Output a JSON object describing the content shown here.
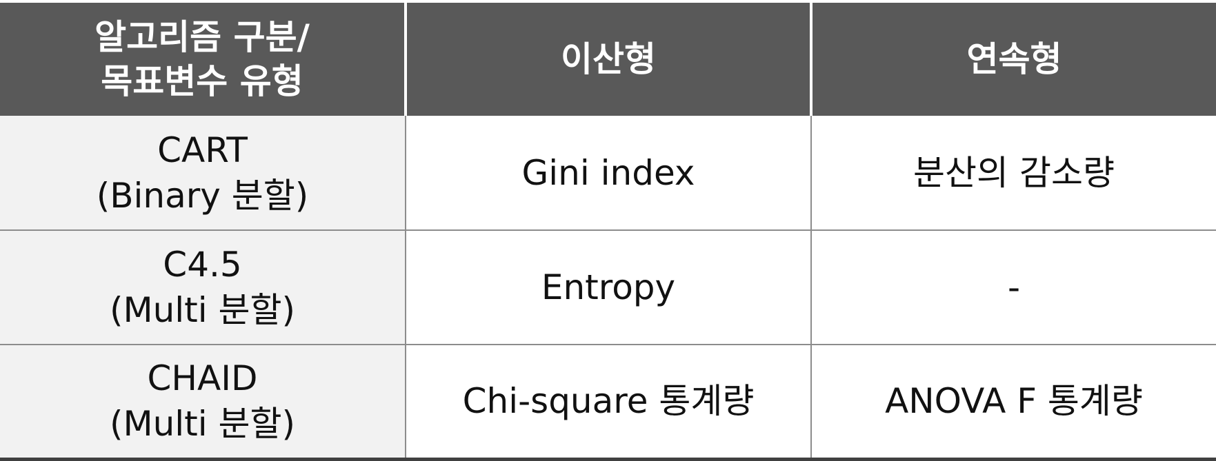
{
  "table": {
    "header": {
      "col1_line1": "알고리즘 구분/",
      "col1_line2": "목표변수 유형",
      "col2": "이산형",
      "col3": "연속형"
    },
    "rows": [
      {
        "algorithm": "CART",
        "split": "(Binary 분할)",
        "discrete": "Gini index",
        "continuous": "분산의 감소량"
      },
      {
        "algorithm": "C4.5",
        "split": "(Multi 분할)",
        "discrete": "Entropy",
        "continuous": "-"
      },
      {
        "algorithm": "CHAID",
        "split": "(Multi 분할)",
        "discrete": "Chi-square 통계량",
        "continuous": "ANOVA F 통계량"
      }
    ]
  },
  "colors": {
    "header_bg": "#595959",
    "header_text": "#ffffff",
    "first_column_bg": "#f2f2f2",
    "grid_line": "#8c8c8c"
  }
}
